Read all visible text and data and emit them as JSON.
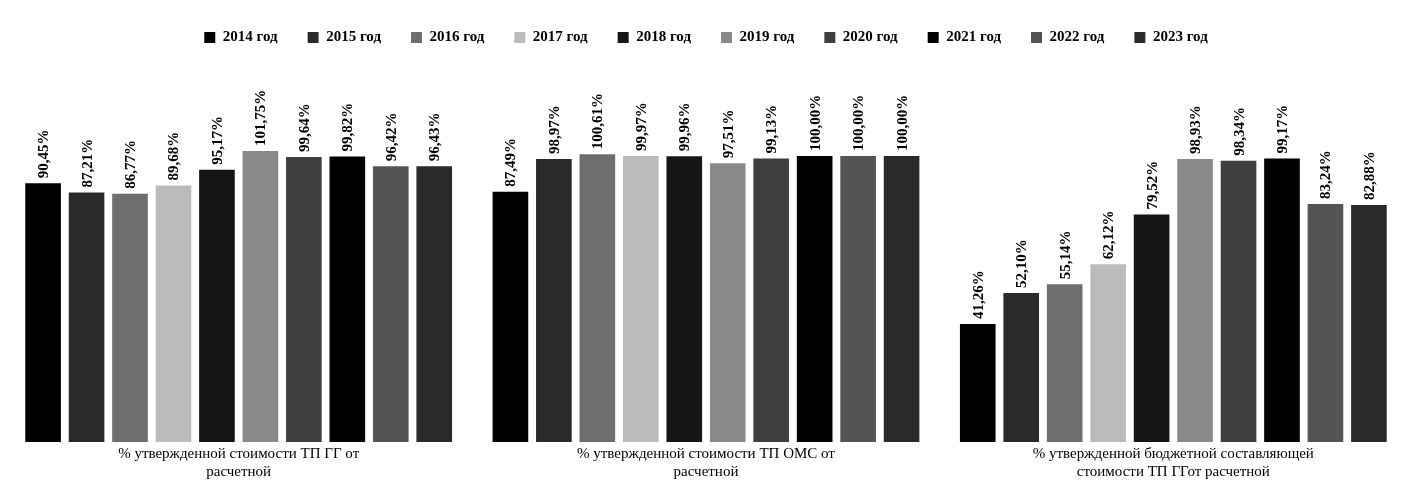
{
  "chart_data": {
    "type": "bar",
    "categories": [
      "% утвержденной стоимости ТП ГГ от расчетной",
      "% утвержденной стоимости ТП ОМС от расчетной",
      "% утвержденной бюджетной составляющей стоимости ТП ГГот расчетной"
    ],
    "series": [
      {
        "name": "2014 год",
        "color": "#000000",
        "values": [
          90.45,
          87.49,
          41.26
        ],
        "value_labels": [
          "90,45%",
          "87,49%",
          "41,26%"
        ]
      },
      {
        "name": "2015 год",
        "color": "#2a2a2a",
        "values": [
          87.21,
          98.97,
          52.1
        ],
        "value_labels": [
          "87,21%",
          "98,97%",
          "52,10%"
        ]
      },
      {
        "name": "2016 год",
        "color": "#6e6e6e",
        "values": [
          86.77,
          100.61,
          55.14
        ],
        "value_labels": [
          "86,77%",
          "100,61%",
          "55,14%"
        ]
      },
      {
        "name": "2017 год",
        "color": "#bbbbbb",
        "values": [
          89.68,
          99.97,
          62.12
        ],
        "value_labels": [
          "89,68%",
          "99,97%",
          "62,12%"
        ]
      },
      {
        "name": "2018 год",
        "color": "#151515",
        "values": [
          95.17,
          99.96,
          79.52
        ],
        "value_labels": [
          "95,17%",
          "99,96%",
          "79,52%"
        ]
      },
      {
        "name": "2019 год",
        "color": "#8a8a8a",
        "values": [
          101.75,
          97.51,
          98.93
        ],
        "value_labels": [
          "101,75%",
          "97,51%",
          "98,93%"
        ]
      },
      {
        "name": "2020 год",
        "color": "#3f3f3f",
        "values": [
          99.64,
          99.13,
          98.34
        ],
        "value_labels": [
          "99,64%",
          "99,13%",
          "98,34%"
        ]
      },
      {
        "name": "2021 год",
        "color": "#000000",
        "values": [
          99.82,
          100.0,
          99.17
        ],
        "value_labels": [
          "99,82%",
          "100,00%",
          "99,17%"
        ]
      },
      {
        "name": "2022 год",
        "color": "#545454",
        "values": [
          96.42,
          100.0,
          83.24
        ],
        "value_labels": [
          "96,42%",
          "100,00%",
          "83,24%"
        ]
      },
      {
        "name": "2023 год",
        "color": "#2a2a2a",
        "values": [
          96.43,
          100.0,
          82.88
        ],
        "value_labels": [
          "96,43%",
          "100,00%",
          "82,88%"
        ]
      }
    ],
    "legend": "top"
  }
}
